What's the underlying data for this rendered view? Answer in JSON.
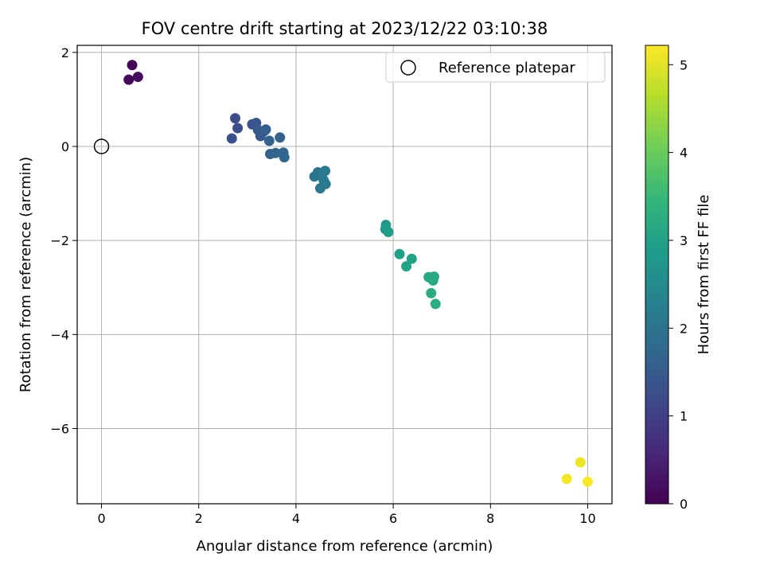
{
  "chart_data": {
    "type": "scatter",
    "title": "FOV centre drift starting at 2023/12/22 03:10:38",
    "xlabel": "Angular distance from reference (arcmin)",
    "ylabel": "Rotation from reference (arcmin)",
    "xlim": [
      -0.5,
      10.5
    ],
    "ylim": [
      -7.6,
      2.15
    ],
    "xticks": [
      0,
      2,
      4,
      6,
      8,
      10
    ],
    "yticks": [
      2,
      0,
      -2,
      -4,
      -6
    ],
    "xtick_labels": [
      "0",
      "2",
      "4",
      "6",
      "8",
      "10"
    ],
    "ytick_labels": [
      "2",
      "0",
      "−2",
      "−4",
      "−6"
    ],
    "grid": true,
    "colormap": "viridis",
    "colorbar": {
      "label": "Hours from first FF file",
      "range": [
        0,
        5.22
      ],
      "ticks": [
        0,
        1,
        2,
        3,
        4,
        5
      ],
      "tick_labels": [
        "0",
        "1",
        "2",
        "3",
        "4",
        "5"
      ],
      "colors": [
        "#440154",
        "#482878",
        "#3e4989",
        "#31688e",
        "#26828e",
        "#1f9e89",
        "#35b779",
        "#6ece58",
        "#b5de2b",
        "#fde725"
      ]
    },
    "legend": {
      "position": "top-right",
      "entries": [
        {
          "label": "Reference platepar",
          "marker": "hollow-circle",
          "color": "#000000"
        }
      ]
    },
    "reference_point": {
      "x": 0,
      "y": 0
    },
    "points": [
      {
        "x": 0.63,
        "y": 1.73,
        "c": 0.05
      },
      {
        "x": 0.75,
        "y": 1.48,
        "c": 0.15
      },
      {
        "x": 0.56,
        "y": 1.42,
        "c": 0.1
      },
      {
        "x": 2.75,
        "y": 0.6,
        "c": 1.2
      },
      {
        "x": 2.8,
        "y": 0.39,
        "c": 1.25
      },
      {
        "x": 2.68,
        "y": 0.17,
        "c": 1.3
      },
      {
        "x": 3.1,
        "y": 0.47,
        "c": 1.35
      },
      {
        "x": 3.18,
        "y": 0.5,
        "c": 1.38
      },
      {
        "x": 3.22,
        "y": 0.35,
        "c": 1.45
      },
      {
        "x": 3.27,
        "y": 0.22,
        "c": 1.5
      },
      {
        "x": 3.35,
        "y": 0.33,
        "c": 1.52
      },
      {
        "x": 3.38,
        "y": 0.36,
        "c": 1.55
      },
      {
        "x": 3.45,
        "y": 0.12,
        "c": 1.6
      },
      {
        "x": 3.67,
        "y": 0.19,
        "c": 1.62
      },
      {
        "x": 3.47,
        "y": -0.16,
        "c": 1.65
      },
      {
        "x": 3.58,
        "y": -0.14,
        "c": 1.68
      },
      {
        "x": 3.74,
        "y": -0.13,
        "c": 1.7
      },
      {
        "x": 3.76,
        "y": -0.23,
        "c": 1.72
      },
      {
        "x": 4.38,
        "y": -0.64,
        "c": 2.0
      },
      {
        "x": 4.45,
        "y": -0.55,
        "c": 2.05
      },
      {
        "x": 4.52,
        "y": -0.6,
        "c": 2.08
      },
      {
        "x": 4.57,
        "y": -0.72,
        "c": 2.1
      },
      {
        "x": 4.6,
        "y": -0.52,
        "c": 2.12
      },
      {
        "x": 4.61,
        "y": -0.8,
        "c": 2.15
      },
      {
        "x": 4.5,
        "y": -0.89,
        "c": 2.1
      },
      {
        "x": 5.85,
        "y": -1.67,
        "c": 2.8
      },
      {
        "x": 5.84,
        "y": -1.76,
        "c": 2.82
      },
      {
        "x": 5.9,
        "y": -1.82,
        "c": 2.85
      },
      {
        "x": 6.13,
        "y": -2.29,
        "c": 2.95
      },
      {
        "x": 6.38,
        "y": -2.39,
        "c": 3.0
      },
      {
        "x": 6.27,
        "y": -2.55,
        "c": 3.02
      },
      {
        "x": 6.73,
        "y": -2.78,
        "c": 3.1
      },
      {
        "x": 6.8,
        "y": -2.8,
        "c": 3.12
      },
      {
        "x": 6.84,
        "y": -2.77,
        "c": 3.15
      },
      {
        "x": 6.82,
        "y": -2.85,
        "c": 3.16
      },
      {
        "x": 6.78,
        "y": -3.12,
        "c": 3.2
      },
      {
        "x": 6.87,
        "y": -3.35,
        "c": 3.25
      },
      {
        "x": 9.85,
        "y": -6.72,
        "c": 5.1
      },
      {
        "x": 9.57,
        "y": -7.07,
        "c": 5.15
      },
      {
        "x": 10.0,
        "y": -7.13,
        "c": 5.2
      }
    ]
  }
}
